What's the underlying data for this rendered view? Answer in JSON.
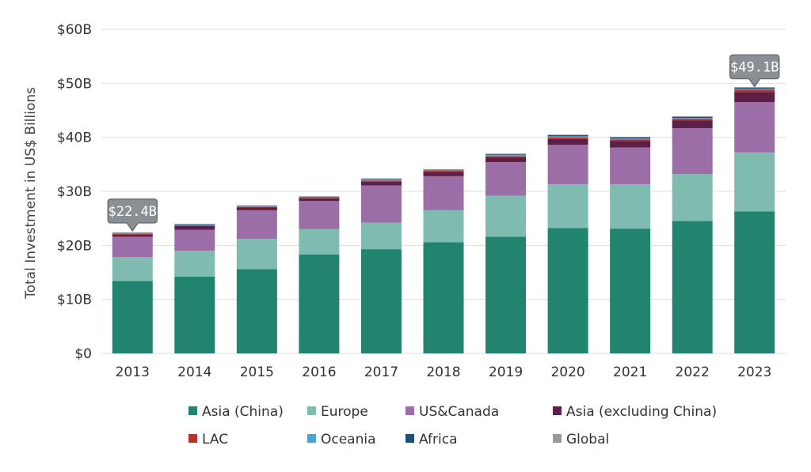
{
  "chart_data": {
    "type": "bar",
    "stacked": true,
    "title": "",
    "xlabel": "",
    "ylabel": "Total Investment in US$ Billions",
    "ylim": [
      0,
      60
    ],
    "yticks": [
      "$0",
      "$10B",
      "$20B",
      "$30B",
      "$40B",
      "$50B",
      "$60B"
    ],
    "ytick_values": [
      0,
      10,
      20,
      30,
      40,
      50,
      60
    ],
    "grid": true,
    "legend_position": "bottom",
    "categories": [
      "2013",
      "2014",
      "2015",
      "2016",
      "2017",
      "2018",
      "2019",
      "2020",
      "2021",
      "2022",
      "2023"
    ],
    "series": [
      {
        "name": "Asia (China)",
        "color": "#22846f",
        "values": [
          13.4,
          14.2,
          15.6,
          18.3,
          19.3,
          20.6,
          21.6,
          23.2,
          23.1,
          24.5,
          26.3
        ]
      },
      {
        "name": "Europe",
        "color": "#7fbcaf",
        "values": [
          4.4,
          4.8,
          5.6,
          4.7,
          4.9,
          5.9,
          7.6,
          8.1,
          8.2,
          8.7,
          10.9
        ]
      },
      {
        "name": "US&Canada",
        "color": "#9b6ea8",
        "values": [
          3.8,
          3.9,
          5.3,
          5.2,
          6.9,
          6.3,
          6.2,
          7.3,
          6.8,
          8.5,
          9.3
        ]
      },
      {
        "name": "Asia (excluding China)",
        "color": "#5c2048",
        "values": [
          0.4,
          0.7,
          0.5,
          0.5,
          0.7,
          0.8,
          0.9,
          1.1,
          1.2,
          1.4,
          1.9
        ]
      },
      {
        "name": "LAC",
        "color": "#c0302a",
        "values": [
          0.1,
          0.1,
          0.1,
          0.1,
          0.2,
          0.2,
          0.2,
          0.3,
          0.3,
          0.3,
          0.4
        ]
      },
      {
        "name": "Oceania",
        "color": "#4ba3d8",
        "values": [
          0.1,
          0.1,
          0.1,
          0.1,
          0.2,
          0.1,
          0.3,
          0.2,
          0.2,
          0.2,
          0.2
        ]
      },
      {
        "name": "Africa",
        "color": "#1c4f7a",
        "values": [
          0.1,
          0.1,
          0.1,
          0.1,
          0.1,
          0.1,
          0.1,
          0.2,
          0.2,
          0.2,
          0.2
        ]
      },
      {
        "name": "Global",
        "color": "#999999",
        "values": [
          0.1,
          0.1,
          0.1,
          0.1,
          0.1,
          0.1,
          0.1,
          0.1,
          0.1,
          0.1,
          0.1
        ]
      }
    ],
    "annotations": [
      {
        "category": "2013",
        "text": "$22.4B",
        "value": 22.4
      },
      {
        "category": "2023",
        "text": "$49.1B",
        "value": 49.1
      }
    ],
    "colors": {
      "grid": "#dddddd",
      "callout_fill": "#8a8f94",
      "callout_stroke": "#6b6f73"
    }
  }
}
